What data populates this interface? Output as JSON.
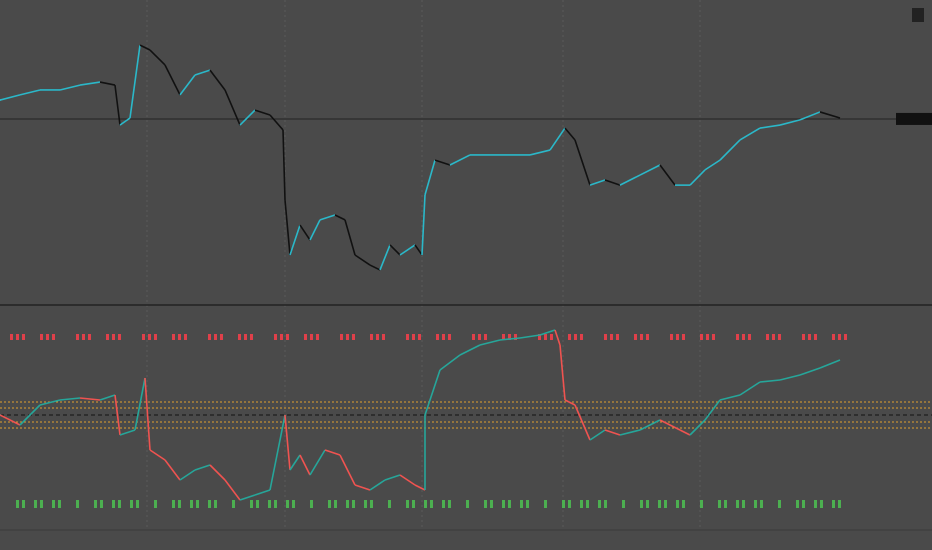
{
  "chart_data": [
    {
      "type": "line",
      "x": [
        0,
        20,
        40,
        60,
        80,
        100,
        115,
        120,
        130,
        140,
        150,
        165,
        180,
        195,
        210,
        225,
        240,
        255,
        270,
        283,
        285,
        290,
        300,
        310,
        320,
        335,
        345,
        355,
        370,
        380,
        390,
        400,
        415,
        422,
        425,
        435,
        450,
        470,
        490,
        510,
        530,
        550,
        565,
        575,
        590,
        605,
        620,
        640,
        660,
        675,
        690,
        705,
        720,
        740,
        760,
        780,
        800,
        820,
        840
      ],
      "xlim": [
        0,
        932
      ],
      "values": [
        67.2,
        68.9,
        70.5,
        70.5,
        72.1,
        73.1,
        72.1,
        59.0,
        61.3,
        85.2,
        83.6,
        78.7,
        68.9,
        75.4,
        77.0,
        70.5,
        59.0,
        63.9,
        62.3,
        57.4,
        34.4,
        16.4,
        26.2,
        21.3,
        27.9,
        29.5,
        27.9,
        16.4,
        13.1,
        11.5,
        19.7,
        16.4,
        19.7,
        16.4,
        36.1,
        47.5,
        45.9,
        49.2,
        49.2,
        49.2,
        49.2,
        50.8,
        58.0,
        54.1,
        39.3,
        41.0,
        39.3,
        42.6,
        45.9,
        39.3,
        39.3,
        44.3,
        47.5,
        54.1,
        58.0,
        59.0,
        60.7,
        63.3,
        61.3
      ],
      "ylim": [
        0,
        100
      ],
      "price_line": 61,
      "up_color": "#2bb8c9",
      "down_color": "#111111"
    },
    {
      "type": "oscillator",
      "x": [
        0,
        20,
        40,
        60,
        80,
        100,
        115,
        120,
        135,
        145,
        150,
        165,
        180,
        195,
        210,
        225,
        240,
        255,
        270,
        285,
        290,
        300,
        310,
        325,
        340,
        355,
        370,
        385,
        400,
        415,
        425,
        425,
        440,
        460,
        480,
        500,
        520,
        540,
        555,
        560,
        565,
        575,
        590,
        605,
        620,
        640,
        660,
        680,
        690,
        705,
        720,
        740,
        760,
        780,
        800,
        820,
        840
      ],
      "xlim": [
        0,
        932
      ],
      "values": [
        52.5,
        47.5,
        57.5,
        60,
        61,
        60,
        62.5,
        42.5,
        45,
        71,
        35,
        30,
        20,
        25,
        27.5,
        20,
        10,
        12.5,
        15,
        52.5,
        25,
        32.5,
        22.5,
        35,
        32.5,
        17.5,
        15,
        20,
        22.5,
        17.5,
        15,
        52.5,
        75,
        82.5,
        87.5,
        90,
        91,
        92.5,
        95,
        87.5,
        60,
        57.5,
        40,
        45,
        42.5,
        45,
        50,
        45,
        42.5,
        50,
        60,
        62.5,
        69,
        70,
        72.5,
        76,
        80
      ],
      "ylim": [
        0,
        100
      ],
      "levels": [
        59,
        56,
        49,
        46
      ],
      "midline": 52.5,
      "up_color": "#26a69a",
      "down_color": "#ef5350",
      "level_color": "#e0a030"
    }
  ]
}
